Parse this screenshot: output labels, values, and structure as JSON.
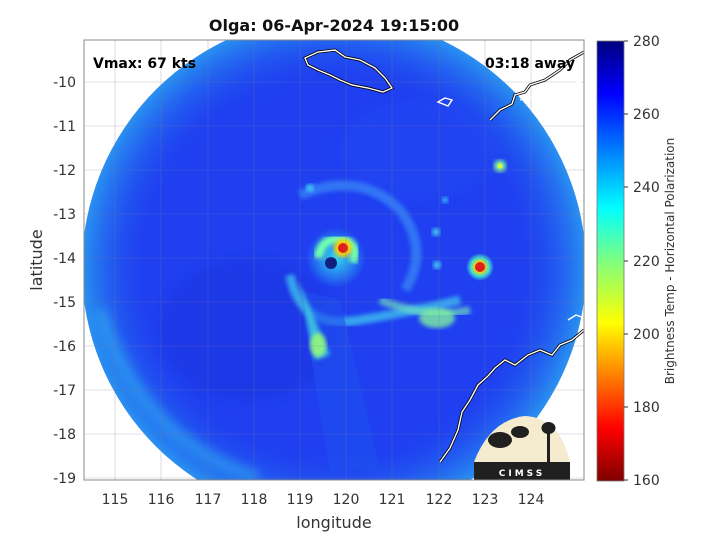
{
  "title": "Olga: 06-Apr-2024 19:15:00",
  "vmax_text": "Vmax: 67 kts",
  "time_text": "03:18 away",
  "xlabel": "longitude",
  "ylabel": "latitude",
  "colorbar_label": "Brightness Temp - Horizontal Polarization",
  "logo_text": "CIMSS",
  "map": {
    "lon_range": [
      114.5,
      124.7
    ],
    "lat_range": [
      -19.1,
      -9.1
    ],
    "lon_ticks": [
      "115",
      "116",
      "117",
      "118",
      "119",
      "120",
      "121",
      "122",
      "123",
      "124"
    ],
    "lat_ticks": [
      "-10",
      "-11",
      "-12",
      "-13",
      "-14",
      "-15",
      "-16",
      "-17",
      "-18",
      "-19"
    ],
    "grid": true
  },
  "colorbar": {
    "min": 160,
    "max": 280,
    "ticks": [
      "280",
      "260",
      "240",
      "220",
      "200",
      "180",
      "160"
    ],
    "colormap": "jet"
  },
  "colors": {
    "background_field": "#1f3ff0",
    "eye_core": "#e0201a",
    "coastline": "#ffffff"
  }
}
